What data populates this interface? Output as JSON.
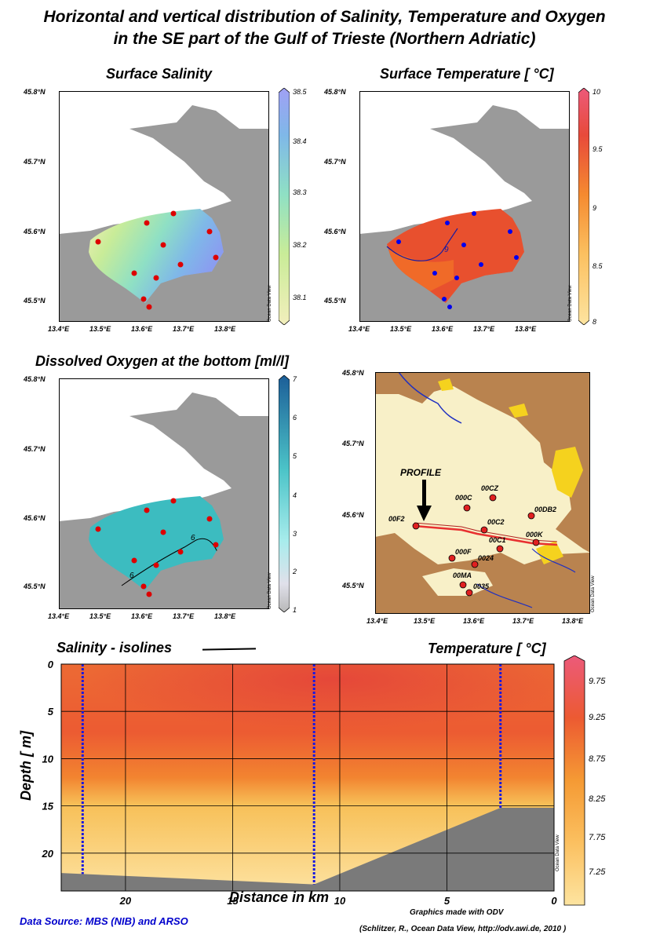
{
  "title": {
    "line1": "Horizontal and vertical distribution of Salinity, Temperature and Oxygen",
    "line2": "in the SE part of the Gulf of Trieste (Northern Adriatic)"
  },
  "maps": {
    "lat_ticks": [
      "45.8°N",
      "45.7°N",
      "45.6°N",
      "45.5°N"
    ],
    "lon_ticks": [
      "13.4°E",
      "13.5°E",
      "13.6°E",
      "13.7°E",
      "13.8°E"
    ],
    "salinity": {
      "title": "Surface Salinity",
      "colorbar_ticks": [
        "38.5",
        "38.4",
        "38.3",
        "38.2",
        "38.1"
      ]
    },
    "temperature": {
      "title": "Surface Temperature [ °C]",
      "colorbar_ticks": [
        "10",
        "9.5",
        "9",
        "8.5",
        "8"
      ],
      "contour_label": "9"
    },
    "oxygen": {
      "title": "Dissolved Oxygen at the bottom [ml/l]",
      "colorbar_ticks": [
        "7",
        "6",
        "5",
        "4",
        "3",
        "2",
        "1"
      ],
      "contour_label": "6"
    },
    "stations_map": {
      "profile_label": "PROFILE",
      "stations": [
        "00F2",
        "000C",
        "00CZ",
        "00C2",
        "00DB2",
        "000K",
        "00C1",
        "000F",
        "0024",
        "00MA",
        "0035"
      ]
    },
    "odv_watermark": "Ocean Data View"
  },
  "section": {
    "label_left": "Salinity - isolines",
    "label_right": "Temperature  [ °C]",
    "colorbar_ticks": [
      "9.75",
      "9.25",
      "8.75",
      "8.25",
      "7.75",
      "7.25"
    ]
  },
  "colors": {
    "land": "#9a9a9a",
    "sea_white": "#ffffff",
    "station_dot": "#dd0000",
    "cast_line": "#0000ee",
    "map_land_brown": "#b9834f",
    "map_water": "#f8f0c8"
  },
  "footer": {
    "data_source": "Data Source: MBS (NIB) and ARSO",
    "graphics_made": "Graphics made with ODV",
    "citation": "(Schlitzer, R., Ocean Data View, http://odv.awi.de, 2010 )"
  },
  "chart_data": {
    "type": "heatmap",
    "title": "Temperature  [ °C]",
    "xlabel": "Distance in km",
    "ylabel": "Depth  [ m]",
    "x_ticks": [
      20,
      15,
      10,
      5,
      0
    ],
    "y_ticks": [
      0,
      5,
      10,
      15,
      20
    ],
    "xlim": [
      23,
      0
    ],
    "ylim": [
      24,
      0
    ],
    "colorbar": {
      "range": [
        7.25,
        10.0
      ],
      "ticks": [
        9.75,
        9.25,
        8.75,
        8.25,
        7.75,
        7.25
      ]
    },
    "cast_positions_km": [
      22,
      11.2,
      2.5
    ],
    "bottom_depth_m": [
      {
        "x": 23,
        "y": 22.1
      },
      {
        "x": 11.2,
        "y": 23.3
      },
      {
        "x": 2.5,
        "y": 15.2
      },
      {
        "x": 0,
        "y": 15.2
      }
    ]
  }
}
